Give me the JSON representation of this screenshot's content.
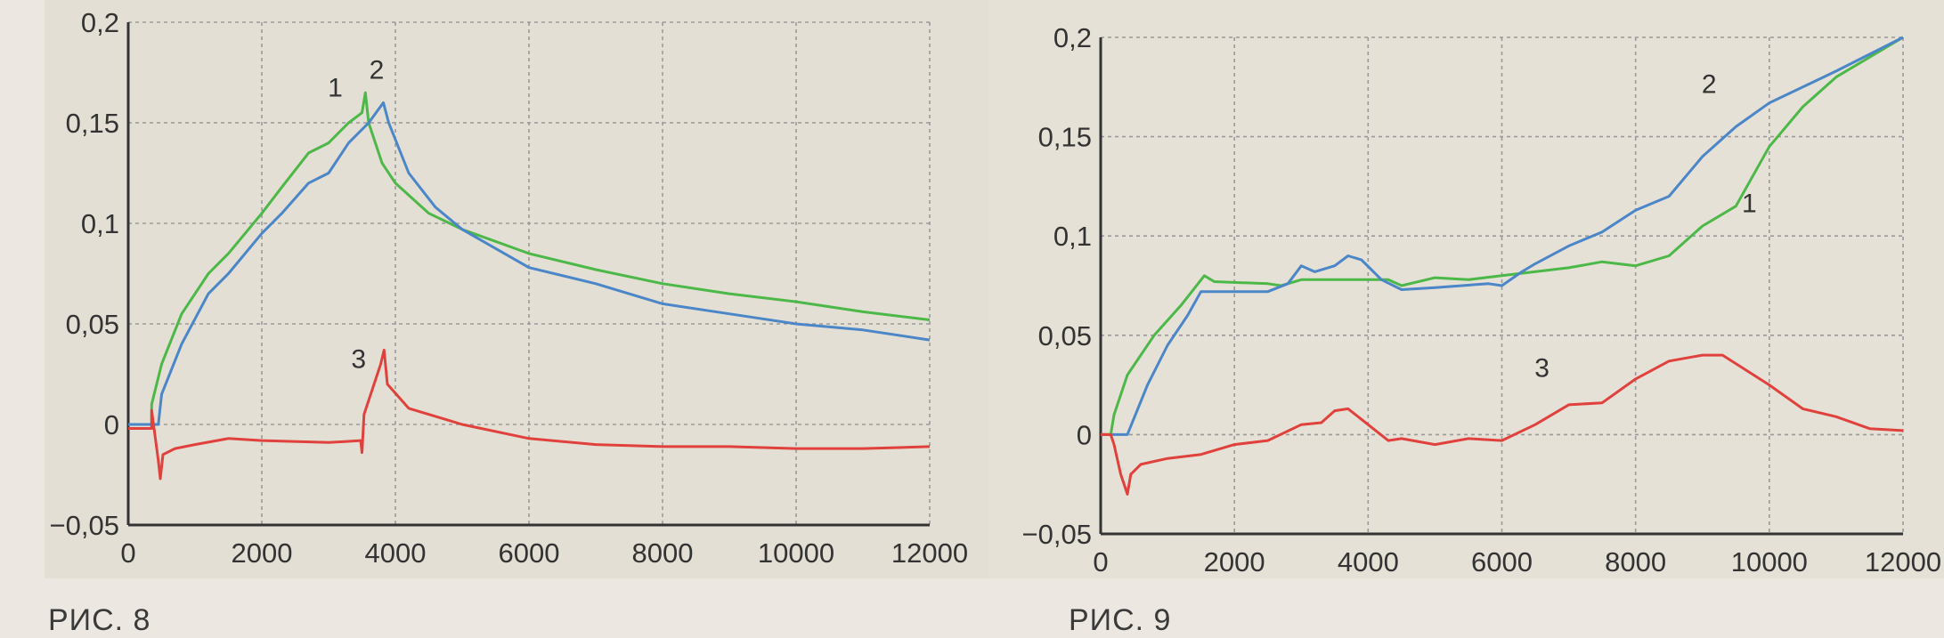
{
  "figures": [
    {
      "caption": "РИС. 8"
    },
    {
      "caption": "РИС. 9"
    }
  ],
  "colors": {
    "series1": "#4cb848",
    "series2": "#4a86c8",
    "series3": "#e0413c",
    "grid": "#9a9a9a",
    "axis": "#333333"
  },
  "chart_data": [
    {
      "type": "line",
      "title": "РИС. 8",
      "xlim": [
        0,
        12000
      ],
      "ylim": [
        -0.05,
        0.2
      ],
      "x_ticks": [
        0,
        2000,
        4000,
        6000,
        8000,
        10000,
        12000
      ],
      "x_tick_labels": [
        "0",
        "2000",
        "4000",
        "6000",
        "8000",
        "10000",
        "12000"
      ],
      "y_ticks": [
        -0.05,
        0,
        0.05,
        0.1,
        0.15,
        0.2
      ],
      "y_tick_labels": [
        "−0,05",
        "0",
        "0,05",
        "0,1",
        "0,15",
        "0,2"
      ],
      "grid": true,
      "series": [
        {
          "name": "1",
          "color": "#4cb848",
          "label_at": [
            3100,
            0.163
          ],
          "points": [
            [
              0,
              0
            ],
            [
              350,
              0
            ],
            [
              350,
              0.01
            ],
            [
              500,
              0.03
            ],
            [
              800,
              0.055
            ],
            [
              1200,
              0.075
            ],
            [
              1500,
              0.085
            ],
            [
              2000,
              0.105
            ],
            [
              2300,
              0.118
            ],
            [
              2700,
              0.135
            ],
            [
              3000,
              0.14
            ],
            [
              3300,
              0.15
            ],
            [
              3500,
              0.155
            ],
            [
              3550,
              0.165
            ],
            [
              3600,
              0.15
            ],
            [
              3800,
              0.13
            ],
            [
              4000,
              0.12
            ],
            [
              4500,
              0.105
            ],
            [
              5000,
              0.097
            ],
            [
              6000,
              0.085
            ],
            [
              7000,
              0.077
            ],
            [
              8000,
              0.07
            ],
            [
              9000,
              0.065
            ],
            [
              10000,
              0.061
            ],
            [
              11000,
              0.056
            ],
            [
              12000,
              0.052
            ]
          ]
        },
        {
          "name": "2",
          "color": "#4a86c8",
          "label_at": [
            3720,
            0.172
          ],
          "points": [
            [
              0,
              0
            ],
            [
              450,
              0
            ],
            [
              500,
              0.015
            ],
            [
              800,
              0.04
            ],
            [
              1200,
              0.065
            ],
            [
              1500,
              0.075
            ],
            [
              2000,
              0.095
            ],
            [
              2300,
              0.105
            ],
            [
              2700,
              0.12
            ],
            [
              3000,
              0.125
            ],
            [
              3300,
              0.14
            ],
            [
              3600,
              0.15
            ],
            [
              3820,
              0.16
            ],
            [
              3900,
              0.15
            ],
            [
              4200,
              0.125
            ],
            [
              4600,
              0.108
            ],
            [
              5000,
              0.097
            ],
            [
              6000,
              0.078
            ],
            [
              7000,
              0.07
            ],
            [
              8000,
              0.06
            ],
            [
              9000,
              0.055
            ],
            [
              10000,
              0.05
            ],
            [
              11000,
              0.047
            ],
            [
              12000,
              0.042
            ]
          ]
        },
        {
          "name": "3",
          "color": "#e0413c",
          "label_at": [
            3450,
            0.028
          ],
          "points": [
            [
              0,
              -0.002
            ],
            [
              350,
              -0.002
            ],
            [
              350,
              0.007
            ],
            [
              450,
              -0.018
            ],
            [
              480,
              -0.027
            ],
            [
              520,
              -0.015
            ],
            [
              700,
              -0.012
            ],
            [
              1000,
              -0.01
            ],
            [
              1500,
              -0.007
            ],
            [
              2000,
              -0.008
            ],
            [
              3000,
              -0.009
            ],
            [
              3480,
              -0.008
            ],
            [
              3500,
              -0.014
            ],
            [
              3530,
              0.005
            ],
            [
              3780,
              0.03
            ],
            [
              3830,
              0.037
            ],
            [
              3880,
              0.02
            ],
            [
              4200,
              0.008
            ],
            [
              5000,
              0
            ],
            [
              6000,
              -0.007
            ],
            [
              7000,
              -0.01
            ],
            [
              8000,
              -0.011
            ],
            [
              9000,
              -0.011
            ],
            [
              10000,
              -0.012
            ],
            [
              11000,
              -0.012
            ],
            [
              12000,
              -0.011
            ]
          ]
        }
      ]
    },
    {
      "type": "line",
      "title": "РИС. 9",
      "xlim": [
        0,
        12000
      ],
      "ylim": [
        -0.05,
        0.2
      ],
      "x_ticks": [
        0,
        2000,
        4000,
        6000,
        8000,
        10000,
        12000
      ],
      "x_tick_labels": [
        "0",
        "2000",
        "4000",
        "6000",
        "8000",
        "10000",
        "12000"
      ],
      "y_ticks": [
        -0.05,
        0,
        0.05,
        0.1,
        0.15,
        0.2
      ],
      "y_tick_labels": [
        "−0,05",
        "0",
        "0,05",
        "0,1",
        "0,15",
        "0,2"
      ],
      "grid": true,
      "series": [
        {
          "name": "1",
          "color": "#4cb848",
          "label_at": [
            9700,
            0.112
          ],
          "points": [
            [
              0,
              0
            ],
            [
              150,
              0
            ],
            [
              200,
              0.01
            ],
            [
              400,
              0.03
            ],
            [
              800,
              0.05
            ],
            [
              1200,
              0.065
            ],
            [
              1550,
              0.08
            ],
            [
              1700,
              0.077
            ],
            [
              2500,
              0.076
            ],
            [
              2700,
              0.075
            ],
            [
              3000,
              0.078
            ],
            [
              4000,
              0.078
            ],
            [
              4300,
              0.078
            ],
            [
              4500,
              0.075
            ],
            [
              5000,
              0.079
            ],
            [
              5500,
              0.078
            ],
            [
              6000,
              0.08
            ],
            [
              7000,
              0.084
            ],
            [
              7500,
              0.087
            ],
            [
              8000,
              0.085
            ],
            [
              8500,
              0.09
            ],
            [
              9000,
              0.105
            ],
            [
              9500,
              0.115
            ],
            [
              10000,
              0.145
            ],
            [
              10500,
              0.165
            ],
            [
              11000,
              0.18
            ],
            [
              12000,
              0.2
            ]
          ]
        },
        {
          "name": "2",
          "color": "#4a86c8",
          "label_at": [
            9100,
            0.172
          ],
          "points": [
            [
              0,
              0
            ],
            [
              400,
              0
            ],
            [
              700,
              0.025
            ],
            [
              1000,
              0.045
            ],
            [
              1300,
              0.06
            ],
            [
              1500,
              0.072
            ],
            [
              2500,
              0.072
            ],
            [
              2800,
              0.076
            ],
            [
              3000,
              0.085
            ],
            [
              3200,
              0.082
            ],
            [
              3500,
              0.085
            ],
            [
              3700,
              0.09
            ],
            [
              3900,
              0.088
            ],
            [
              4200,
              0.078
            ],
            [
              4500,
              0.073
            ],
            [
              5000,
              0.074
            ],
            [
              5800,
              0.076
            ],
            [
              6000,
              0.075
            ],
            [
              6300,
              0.082
            ],
            [
              6500,
              0.086
            ],
            [
              7000,
              0.095
            ],
            [
              7500,
              0.102
            ],
            [
              8000,
              0.113
            ],
            [
              8500,
              0.12
            ],
            [
              9000,
              0.14
            ],
            [
              9500,
              0.155
            ],
            [
              10000,
              0.167
            ],
            [
              11000,
              0.183
            ],
            [
              12000,
              0.2
            ]
          ]
        },
        {
          "name": "3",
          "color": "#e0413c",
          "label_at": [
            6600,
            0.029
          ],
          "points": [
            [
              0,
              0
            ],
            [
              150,
              0
            ],
            [
              200,
              -0.005
            ],
            [
              300,
              -0.02
            ],
            [
              400,
              -0.03
            ],
            [
              450,
              -0.02
            ],
            [
              600,
              -0.015
            ],
            [
              1000,
              -0.012
            ],
            [
              1500,
              -0.01
            ],
            [
              2000,
              -0.005
            ],
            [
              2500,
              -0.003
            ],
            [
              3000,
              0.005
            ],
            [
              3300,
              0.006
            ],
            [
              3500,
              0.012
            ],
            [
              3700,
              0.013
            ],
            [
              4000,
              0.005
            ],
            [
              4300,
              -0.003
            ],
            [
              4500,
              -0.002
            ],
            [
              5000,
              -0.005
            ],
            [
              5500,
              -0.002
            ],
            [
              6000,
              -0.003
            ],
            [
              6500,
              0.005
            ],
            [
              7000,
              0.015
            ],
            [
              7500,
              0.016
            ],
            [
              8000,
              0.028
            ],
            [
              8500,
              0.037
            ],
            [
              9000,
              0.04
            ],
            [
              9300,
              0.04
            ],
            [
              10000,
              0.025
            ],
            [
              10500,
              0.013
            ],
            [
              11000,
              0.009
            ],
            [
              11500,
              0.003
            ],
            [
              12000,
              0.002
            ]
          ]
        }
      ]
    }
  ]
}
